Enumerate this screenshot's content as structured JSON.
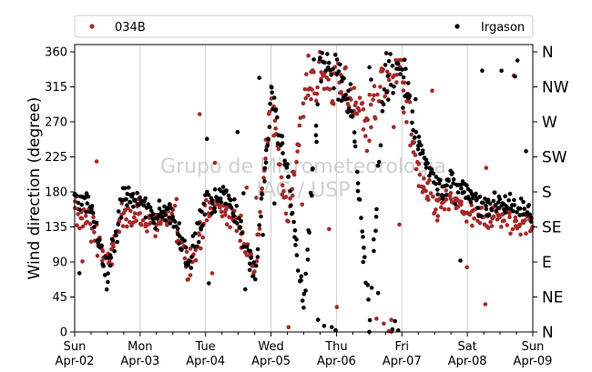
{
  "chart_data": {
    "type": "scatter",
    "ylabel": "Wind direction (degree)",
    "ylim": [
      0,
      365
    ],
    "xlim": [
      "2023-04-02",
      "2023-04-09"
    ],
    "grid": "vertical at day boundaries",
    "legend_placement": "top",
    "y_ticks": [
      "0",
      "45",
      "90",
      "135",
      "180",
      "225",
      "270",
      "315",
      "360"
    ],
    "compass_labels": [
      "N",
      "NE",
      "E",
      "SE",
      "S",
      "SW",
      "W",
      "NW",
      "N"
    ],
    "x_ticks": [
      {
        "day": "Sun",
        "date": "Apr-02"
      },
      {
        "day": "Mon",
        "date": "Apr-03"
      },
      {
        "day": "Tue",
        "date": "Apr-04"
      },
      {
        "day": "Wed",
        "date": "Apr-05"
      },
      {
        "day": "Thu",
        "date": "Apr-06"
      },
      {
        "day": "Fri",
        "date": "Apr-07"
      },
      {
        "day": "Sat",
        "date": "Apr-08"
      },
      {
        "day": "Sun",
        "date": "Apr-09"
      }
    ],
    "watermark": [
      "Grupo de Micrometeorologia",
      "IAG / USP"
    ],
    "series": [
      {
        "name": "034B",
        "color": "#a52a2a",
        "profile": [
          [
            "2023-04-02 00:00",
            150
          ],
          [
            "2023-04-02 06:00",
            145
          ],
          [
            "2023-04-02 12:00",
            85
          ],
          [
            "2023-04-02 18:00",
            155
          ],
          [
            "2023-04-03 00:00",
            150
          ],
          [
            "2023-04-03 06:00",
            140
          ],
          [
            "2023-04-03 12:00",
            150
          ],
          [
            "2023-04-03 18:00",
            80
          ],
          [
            "2023-04-04 00:00",
            150
          ],
          [
            "2023-04-04 06:00",
            160
          ],
          [
            "2023-04-04 12:00",
            140
          ],
          [
            "2023-04-04 18:00",
            80
          ],
          [
            "2023-04-05 00:00",
            300
          ],
          [
            "2023-04-05 06:00",
            140
          ],
          [
            "2023-04-05 12:00",
            300
          ],
          [
            "2023-04-05 18:00",
            330
          ],
          [
            "2023-04-06 00:00",
            320
          ],
          [
            "2023-04-06 06:00",
            300
          ],
          [
            "2023-04-06 12:00",
            270
          ],
          [
            "2023-04-06 18:00",
            340
          ],
          [
            "2023-04-07 00:00",
            330
          ],
          [
            "2023-04-07 06:00",
            200
          ],
          [
            "2023-04-07 12:00",
            160
          ],
          [
            "2023-04-07 18:00",
            170
          ],
          [
            "2023-04-08 00:00",
            150
          ],
          [
            "2023-04-08 06:00",
            145
          ],
          [
            "2023-04-08 12:00",
            150
          ],
          [
            "2023-04-08 18:00",
            140
          ],
          [
            "2023-04-09 00:00",
            140
          ]
        ]
      },
      {
        "name": "Irgason",
        "color": "#000000",
        "profile": [
          [
            "2023-04-02 00:00",
            175
          ],
          [
            "2023-04-02 06:00",
            160
          ],
          [
            "2023-04-02 12:00",
            70
          ],
          [
            "2023-04-02 18:00",
            180
          ],
          [
            "2023-04-03 00:00",
            165
          ],
          [
            "2023-04-03 06:00",
            150
          ],
          [
            "2023-04-03 12:00",
            155
          ],
          [
            "2023-04-03 18:00",
            85
          ],
          [
            "2023-04-04 00:00",
            165
          ],
          [
            "2023-04-04 06:00",
            180
          ],
          [
            "2023-04-04 12:00",
            150
          ],
          [
            "2023-04-04 18:00",
            70
          ],
          [
            "2023-04-05 00:00",
            290
          ],
          [
            "2023-04-05 06:00",
            210
          ],
          [
            "2023-04-05 12:00",
            30
          ],
          [
            "2023-04-05 18:00",
            340
          ],
          [
            "2023-04-06 00:00",
            340
          ],
          [
            "2023-04-06 06:00",
            280
          ],
          [
            "2023-04-06 12:00",
            10
          ],
          [
            "2023-04-06 18:00",
            345
          ],
          [
            "2023-04-07 00:00",
            340
          ],
          [
            "2023-04-07 06:00",
            250
          ],
          [
            "2023-04-07 12:00",
            190
          ],
          [
            "2023-04-07 18:00",
            190
          ],
          [
            "2023-04-08 00:00",
            175
          ],
          [
            "2023-04-08 06:00",
            165
          ],
          [
            "2023-04-08 12:00",
            170
          ],
          [
            "2023-04-08 18:00",
            160
          ],
          [
            "2023-04-09 00:00",
            155
          ]
        ]
      }
    ]
  }
}
